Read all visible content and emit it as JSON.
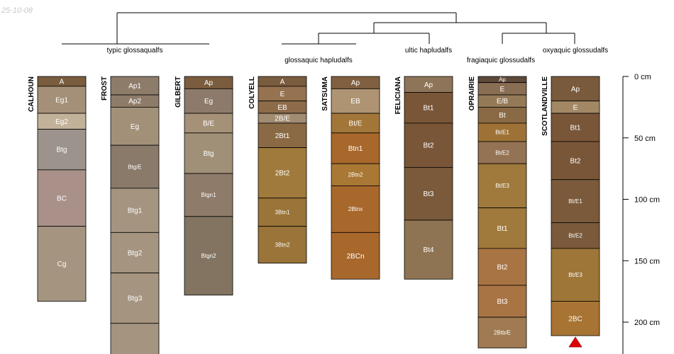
{
  "date_stamp": "25-10-08",
  "dendrogram": {
    "group_labels": [
      "typic glossaqualfs",
      "glossaquic hapludalfs",
      "ultic hapludalfs",
      "fragiaquic glossudalfs",
      "oxyaquic glossudalfs"
    ]
  },
  "depth_axis": {
    "unit": "cm",
    "ticks": [
      {
        "value": 0,
        "label": "0 cm"
      },
      {
        "value": 50,
        "label": "50 cm"
      },
      {
        "value": 100,
        "label": "100 cm"
      },
      {
        "value": 150,
        "label": "150 cm"
      },
      {
        "value": 200,
        "label": "200 cm"
      }
    ],
    "max_depth": 225
  },
  "profiles": [
    {
      "name": "CALHOUN",
      "horizons": [
        {
          "name": "A",
          "top": 0,
          "bottom": 8,
          "color": "#7a5c3e"
        },
        {
          "name": "Eg1",
          "top": 8,
          "bottom": 30,
          "color": "#a49078"
        },
        {
          "name": "Eg2",
          "top": 30,
          "bottom": 43,
          "color": "#c2b299"
        },
        {
          "name": "Btg",
          "top": 43,
          "bottom": 76,
          "color": "#9c948c"
        },
        {
          "name": "BC",
          "top": 76,
          "bottom": 122,
          "color": "#a99088"
        },
        {
          "name": "Cg",
          "top": 122,
          "bottom": 183,
          "color": "#a59580"
        }
      ]
    },
    {
      "name": "FROST",
      "horizons": [
        {
          "name": "Ap1",
          "top": 0,
          "bottom": 15,
          "color": "#8e7c6a"
        },
        {
          "name": "Ap2",
          "top": 15,
          "bottom": 25,
          "color": "#8e7c6a"
        },
        {
          "name": "Eg",
          "top": 25,
          "bottom": 56,
          "color": "#a39079"
        },
        {
          "name": "Btg/E",
          "top": 56,
          "bottom": 91,
          "color": "#8a7a6a"
        },
        {
          "name": "Btg1",
          "top": 91,
          "bottom": 127,
          "color": "#a49480"
        },
        {
          "name": "Btg2",
          "top": 127,
          "bottom": 160,
          "color": "#a49480"
        },
        {
          "name": "Btg3",
          "top": 160,
          "bottom": 201,
          "color": "#a49480"
        },
        {
          "name": "",
          "top": 201,
          "bottom": 230,
          "color": "#a49480"
        }
      ]
    },
    {
      "name": "GILBERT",
      "horizons": [
        {
          "name": "Ap",
          "top": 0,
          "bottom": 10,
          "color": "#7a5c3e"
        },
        {
          "name": "Eg",
          "top": 10,
          "bottom": 30,
          "color": "#8e7a6a"
        },
        {
          "name": "B/E",
          "top": 30,
          "bottom": 46,
          "color": "#a59178"
        },
        {
          "name": "Btg",
          "top": 46,
          "bottom": 79,
          "color": "#a09078"
        },
        {
          "name": "Btgn1",
          "top": 79,
          "bottom": 114,
          "color": "#8e7b6a"
        },
        {
          "name": "Btgn2",
          "top": 114,
          "bottom": 178,
          "color": "#827460"
        }
      ]
    },
    {
      "name": "COLYELL",
      "horizons": [
        {
          "name": "A",
          "top": 0,
          "bottom": 8,
          "color": "#7a5c3e"
        },
        {
          "name": "E",
          "top": 8,
          "bottom": 20,
          "color": "#957250"
        },
        {
          "name": "EB",
          "top": 20,
          "bottom": 30,
          "color": "#8e6c4a"
        },
        {
          "name": "2B/E",
          "top": 30,
          "bottom": 38,
          "color": "#a18c72"
        },
        {
          "name": "2Bt1",
          "top": 38,
          "bottom": 58,
          "color": "#8a6a44"
        },
        {
          "name": "2Bt2",
          "top": 58,
          "bottom": 99,
          "color": "#a07a3c"
        },
        {
          "name": "3Btn1",
          "top": 99,
          "bottom": 122,
          "color": "#9a7438"
        },
        {
          "name": "3Btn2",
          "top": 122,
          "bottom": 152,
          "color": "#9a7438"
        }
      ]
    },
    {
      "name": "SATSUMA",
      "horizons": [
        {
          "name": "Ap",
          "top": 0,
          "bottom": 10,
          "color": "#806040"
        },
        {
          "name": "EB",
          "top": 10,
          "bottom": 30,
          "color": "#ae9472"
        },
        {
          "name": "Bt/E",
          "top": 30,
          "bottom": 46,
          "color": "#a27638"
        },
        {
          "name": "Btn1",
          "top": 46,
          "bottom": 71,
          "color": "#a8682c"
        },
        {
          "name": "2Btn2",
          "top": 71,
          "bottom": 89,
          "color": "#a87834"
        },
        {
          "name": "2Btnx",
          "top": 89,
          "bottom": 127,
          "color": "#a8682c"
        },
        {
          "name": "2BCn",
          "top": 127,
          "bottom": 165,
          "color": "#a8682c"
        }
      ]
    },
    {
      "name": "FELICIANA",
      "horizons": [
        {
          "name": "Ap",
          "top": 0,
          "bottom": 13,
          "color": "#8e7458"
        },
        {
          "name": "Bt1",
          "top": 13,
          "bottom": 38,
          "color": "#7a5638"
        },
        {
          "name": "Bt2",
          "top": 38,
          "bottom": 74,
          "color": "#7a5638"
        },
        {
          "name": "Bt3",
          "top": 74,
          "bottom": 117,
          "color": "#7a5a3a"
        },
        {
          "name": "Bt4",
          "top": 117,
          "bottom": 165,
          "color": "#8e7452"
        }
      ]
    },
    {
      "name": "OPRAIRIE",
      "horizons": [
        {
          "name": "Ap",
          "top": 0,
          "bottom": 5,
          "color": "#5e4a3a"
        },
        {
          "name": "E",
          "top": 5,
          "bottom": 15,
          "color": "#8a6e54"
        },
        {
          "name": "E/B",
          "top": 15,
          "bottom": 25,
          "color": "#957a58"
        },
        {
          "name": "Bt",
          "top": 25,
          "bottom": 38,
          "color": "#8a6a44"
        },
        {
          "name": "Bt/E1",
          "top": 38,
          "bottom": 53,
          "color": "#9e7236"
        },
        {
          "name": "Bt/E2",
          "top": 53,
          "bottom": 71,
          "color": "#947254"
        },
        {
          "name": "Bt/E3",
          "top": 71,
          "bottom": 107,
          "color": "#a07a3c"
        },
        {
          "name": "Bt1",
          "top": 107,
          "bottom": 140,
          "color": "#a07a3c"
        },
        {
          "name": "Bt2",
          "top": 140,
          "bottom": 170,
          "color": "#a87444"
        },
        {
          "name": "Bt3",
          "top": 170,
          "bottom": 196,
          "color": "#a87444"
        },
        {
          "name": "2Btb/E",
          "top": 196,
          "bottom": 221,
          "color": "#a07a52"
        }
      ]
    },
    {
      "name": "SCOTLANDVILLE",
      "horizons": [
        {
          "name": "Ap",
          "top": 0,
          "bottom": 20,
          "color": "#7a5a3c"
        },
        {
          "name": "E",
          "top": 20,
          "bottom": 30,
          "color": "#a28864"
        },
        {
          "name": "Bt1",
          "top": 30,
          "bottom": 53,
          "color": "#7a5638"
        },
        {
          "name": "Bt2",
          "top": 53,
          "bottom": 84,
          "color": "#7a5638"
        },
        {
          "name": "Bt/E1",
          "top": 84,
          "bottom": 119,
          "color": "#7a5a3a"
        },
        {
          "name": "Bt/E2",
          "top": 119,
          "bottom": 140,
          "color": "#7a5a3a"
        },
        {
          "name": "Bt/E3",
          "top": 140,
          "bottom": 183,
          "color": "#9e7638"
        },
        {
          "name": "2BC",
          "top": 183,
          "bottom": 211,
          "color": "#a87434"
        }
      ],
      "marker": "red-triangle"
    }
  ],
  "colors": {
    "line": "#000000",
    "label": "#ffffff",
    "stamp": "#c8c8c8",
    "marker": "#e00000"
  }
}
